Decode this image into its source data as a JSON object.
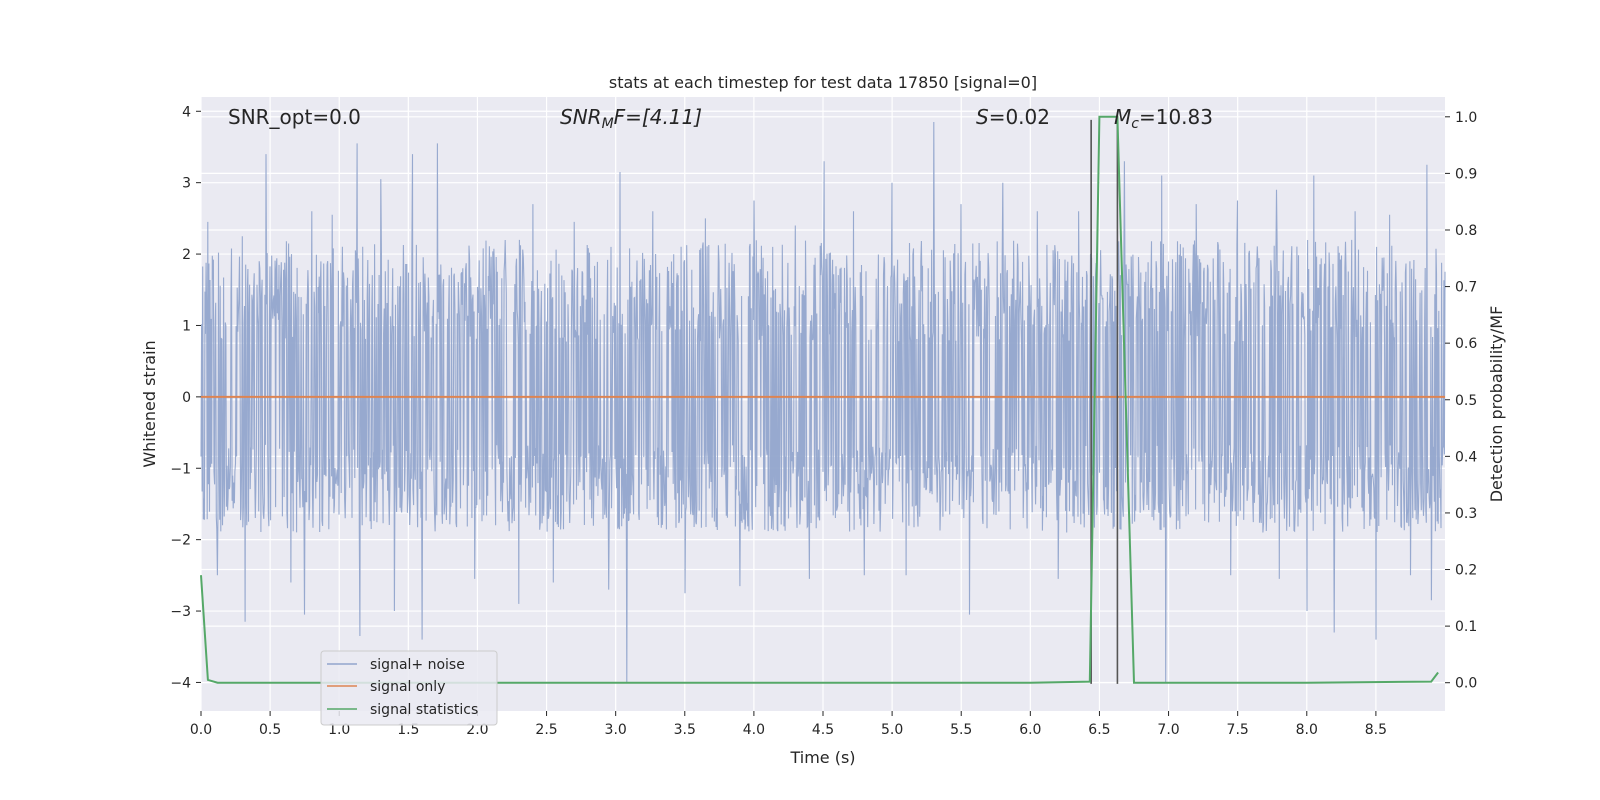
{
  "chart_data": {
    "type": "line",
    "title": "stats at each timestep for test data 17850 [signal=0]",
    "xlabel": "Time (s)",
    "ylabel": "Whitened strain",
    "y2label": "Detection probability/MF",
    "xlim": [
      0.0,
      9.0
    ],
    "ylim": [
      -4.4,
      4.2
    ],
    "y2lim": [
      -0.05,
      1.035
    ],
    "xticks": [
      0.0,
      0.5,
      1.0,
      1.5,
      2.0,
      2.5,
      3.0,
      3.5,
      4.0,
      4.5,
      5.0,
      5.5,
      6.0,
      6.5,
      7.0,
      7.5,
      8.0,
      8.5
    ],
    "xtick_labels": [
      "0.0",
      "0.5",
      "1.0",
      "1.5",
      "2.0",
      "2.5",
      "3.0",
      "3.5",
      "4.0",
      "4.5",
      "5.0",
      "5.5",
      "6.0",
      "6.5",
      "7.0",
      "7.5",
      "8.0",
      "8.5"
    ],
    "yticks": [
      4,
      3,
      2,
      1,
      0,
      -1,
      -2,
      -3,
      -4
    ],
    "ytick_labels": [
      "4",
      "3",
      "2",
      "1",
      "0",
      "−1",
      "−2",
      "−3",
      "−4"
    ],
    "y2ticks": [
      1.0,
      0.9,
      0.8,
      0.7,
      0.6,
      0.5,
      0.4,
      0.3,
      0.2,
      0.1,
      0.0
    ],
    "y2tick_labels": [
      "1.0",
      "0.9",
      "0.8",
      "0.7",
      "0.6",
      "0.5",
      "0.4",
      "0.3",
      "0.2",
      "0.1",
      "0.0"
    ],
    "grid": true,
    "legend_position": "bottom-left",
    "annotations": {
      "snr_opt": "SNR_opt=0.0",
      "snr_mf_main": "SNR",
      "snr_mf_sub": "M",
      "snr_mf_rest": "F=[4.11]",
      "s_italic": "S",
      "s_rest": "=0.02",
      "mc_italic": "M",
      "mc_sub": "c",
      "mc_rest": "=10.83"
    },
    "vertical_markers": [
      6.44,
      6.63
    ],
    "series": [
      {
        "name": "signal+ noise",
        "axis": "left",
        "color": "#92a5cc",
        "band": {
          "typical_low": -1.9,
          "typical_high": 2.2
        },
        "spikes": [
          [
            0.05,
            2.45
          ],
          [
            0.3,
            2.25
          ],
          [
            0.47,
            3.4
          ],
          [
            0.8,
            2.6
          ],
          [
            0.95,
            2.55
          ],
          [
            1.13,
            3.55
          ],
          [
            1.3,
            3.05
          ],
          [
            1.53,
            3.4
          ],
          [
            1.71,
            3.55
          ],
          [
            2.4,
            2.7
          ],
          [
            2.7,
            2.45
          ],
          [
            3.03,
            3.15
          ],
          [
            3.27,
            2.6
          ],
          [
            3.65,
            2.5
          ],
          [
            4.0,
            2.75
          ],
          [
            4.3,
            2.4
          ],
          [
            4.51,
            3.3
          ],
          [
            4.72,
            2.6
          ],
          [
            5.0,
            3.0
          ],
          [
            5.3,
            3.85
          ],
          [
            5.5,
            2.7
          ],
          [
            5.8,
            3.0
          ],
          [
            6.05,
            2.6
          ],
          [
            6.35,
            2.6
          ],
          [
            6.68,
            3.3
          ],
          [
            6.95,
            3.1
          ],
          [
            7.2,
            2.7
          ],
          [
            7.5,
            2.75
          ],
          [
            7.78,
            2.9
          ],
          [
            8.05,
            3.1
          ],
          [
            8.35,
            2.6
          ],
          [
            8.6,
            2.55
          ],
          [
            8.87,
            3.25
          ],
          [
            0.12,
            -2.5
          ],
          [
            0.32,
            -3.15
          ],
          [
            0.65,
            -2.6
          ],
          [
            0.75,
            -3.05
          ],
          [
            1.15,
            -3.35
          ],
          [
            1.4,
            -3.0
          ],
          [
            1.6,
            -3.4
          ],
          [
            1.98,
            -2.55
          ],
          [
            2.3,
            -2.9
          ],
          [
            2.55,
            -2.6
          ],
          [
            2.95,
            -2.7
          ],
          [
            3.08,
            -4.0
          ],
          [
            3.5,
            -2.75
          ],
          [
            3.9,
            -2.65
          ],
          [
            4.4,
            -2.55
          ],
          [
            4.8,
            -2.5
          ],
          [
            5.1,
            -2.5
          ],
          [
            5.56,
            -3.05
          ],
          [
            6.2,
            -2.55
          ],
          [
            6.98,
            -4.0
          ],
          [
            7.45,
            -2.5
          ],
          [
            7.8,
            -2.55
          ],
          [
            8.0,
            -3.0
          ],
          [
            8.2,
            -3.3
          ],
          [
            8.5,
            -3.4
          ],
          [
            8.75,
            -2.5
          ],
          [
            8.9,
            -2.85
          ]
        ]
      },
      {
        "name": "signal only",
        "axis": "left",
        "color": "#dd8452",
        "x": [
          0.0,
          9.0
        ],
        "y": [
          0.0,
          0.0
        ]
      },
      {
        "name": "signal statistics",
        "axis": "right",
        "color": "#55a868",
        "x": [
          0.0,
          0.05,
          0.12,
          0.5,
          1.0,
          2.0,
          3.0,
          4.0,
          5.0,
          6.0,
          6.43,
          6.5,
          6.63,
          6.75,
          6.8,
          7.0,
          8.0,
          8.9,
          8.95
        ],
        "y": [
          0.19,
          0.005,
          0.0,
          0.0,
          0.0,
          0.0,
          0.0,
          0.0,
          0.0,
          0.0,
          0.002,
          1.0,
          1.0,
          0.0,
          0.0,
          0.0,
          0.0,
          0.002,
          0.018
        ]
      }
    ]
  }
}
